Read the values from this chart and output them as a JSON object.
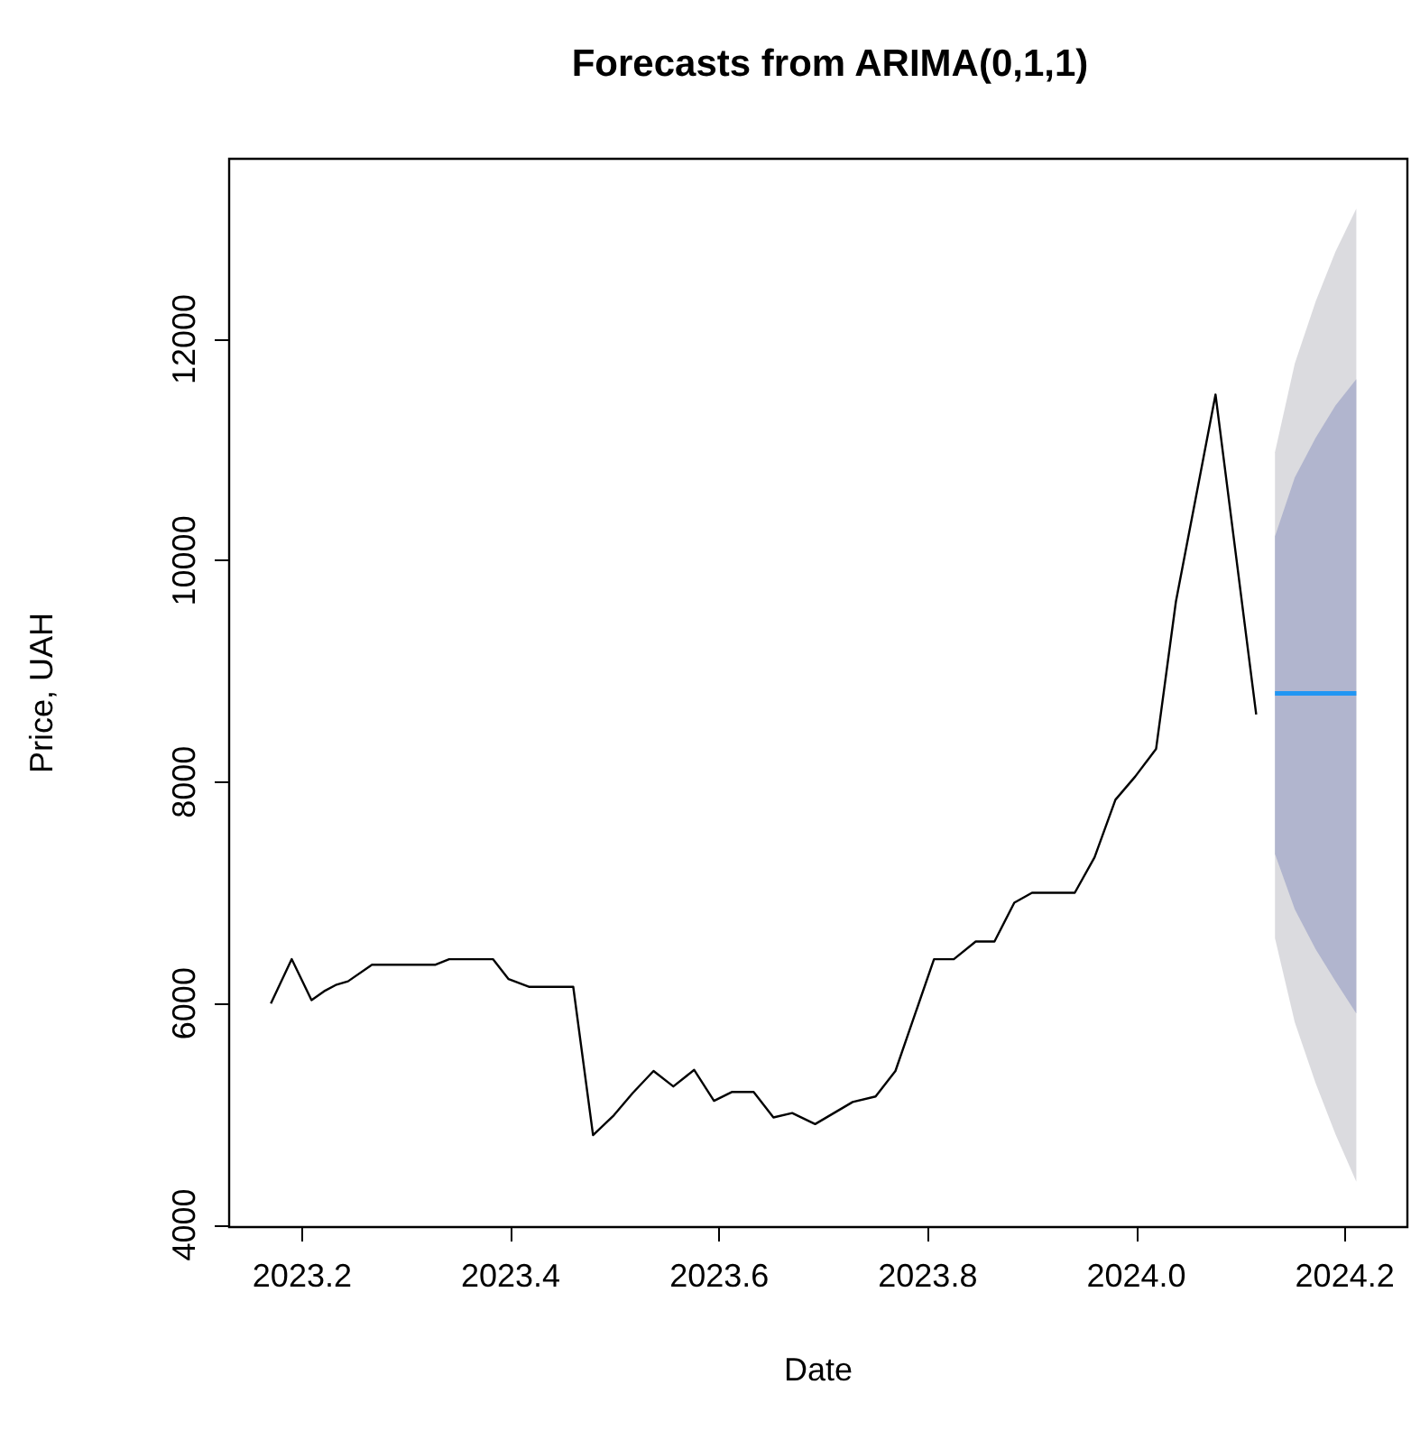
{
  "chart_data": {
    "type": "line",
    "title": "Forecasts from ARIMA(0,1,1)",
    "xlabel": "Date",
    "ylabel": "Price, UAH",
    "xlim": [
      2023.13,
      2024.26
    ],
    "ylim": [
      3980,
      13630
    ],
    "xticks": [
      2023.2,
      2023.4,
      2023.6,
      2023.8,
      {
        "value": 2024,
        "label": "2024.0"
      },
      2024.2
    ],
    "yticks": [
      4000,
      6000,
      8000,
      10000,
      12000
    ],
    "grid": false,
    "marker": "none",
    "line_style": "solid",
    "series": [
      {
        "color": "#000000",
        "x": [
          2023.17,
          2023.19,
          2023.209,
          2023.221,
          2023.233,
          2023.244,
          2023.267,
          2023.328,
          2023.341,
          2023.383,
          2023.398,
          2023.418,
          2023.46,
          2023.479,
          2023.499,
          2023.517,
          2023.537,
          2023.556,
          2023.576,
          2023.595,
          2023.612,
          2023.633,
          2023.652,
          2023.67,
          2023.692,
          2023.728,
          2023.75,
          2023.769,
          2023.806,
          2023.825,
          2023.846,
          2023.864,
          2023.883,
          2023.9,
          2023.941,
          2023.96,
          2023.98,
          2023.999,
          2024.019,
          2024.038,
          2024.076,
          2024.115
        ],
        "values": [
          6000,
          6400,
          6030,
          6110,
          6170,
          6200,
          6350,
          6350,
          6400,
          6400,
          6220,
          6150,
          6150,
          4810,
          4990,
          5190,
          5390,
          5250,
          5400,
          5120,
          5200,
          5200,
          4970,
          5010,
          4910,
          5110,
          5160,
          5390,
          6400,
          6400,
          6560,
          6560,
          6910,
          7000,
          7000,
          7320,
          7840,
          8050,
          8300,
          9630,
          11500,
          8610
        ]
      },
      {
        "color": "#dbdbdf",
        "x": [
          2024.133,
          2024.152,
          2024.172,
          2024.191,
          2024.211
        ],
        "values": [
          null,
          null,
          null,
          null,
          null
        ],
        "lower": [
          6590,
          5830,
          5280,
          4820,
          4390
        ],
        "upper": [
          10980,
          11780,
          12340,
          12790,
          13180
        ]
      },
      {
        "color": "#b1b5ce",
        "x": [
          2024.133,
          2024.152,
          2024.172,
          2024.191,
          2024.211
        ],
        "values": [
          null,
          null,
          null,
          null,
          null
        ],
        "lower": [
          7350,
          6850,
          6490,
          6200,
          5910
        ],
        "upper": [
          10220,
          10750,
          11110,
          11400,
          11640
        ]
      },
      {
        "color": "#2196f3",
        "x": [
          2024.133,
          2024.152,
          2024.172,
          2024.191,
          2024.211
        ],
        "values": [
          8800,
          8800,
          8800,
          8800,
          8800
        ]
      }
    ]
  }
}
